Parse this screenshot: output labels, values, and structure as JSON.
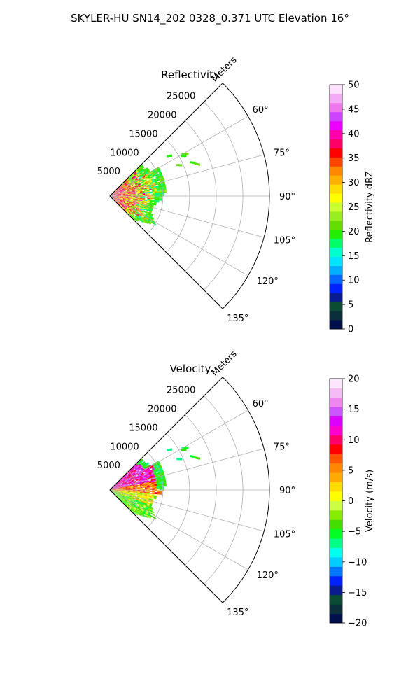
{
  "figure": {
    "title": "SKYLER-HU  SN14_202  0328_0.371 UTC Elevation 16°"
  },
  "colors": {
    "grid": "#b0b0b0",
    "axis": "#000000",
    "reflectivity_palette": [
      "#00104d",
      "#0a2f3a",
      "#0b4d33",
      "#0a1a8f",
      "#0022ff",
      "#0066ff",
      "#00b0ff",
      "#00e5ff",
      "#00ffcc",
      "#00ff66",
      "#22ee00",
      "#66dd00",
      "#99ee22",
      "#ccff33",
      "#ffff00",
      "#ffdd00",
      "#ffb000",
      "#ff8800",
      "#ff4400",
      "#ff0000",
      "#ff0066",
      "#ff00aa",
      "#ee00ff",
      "#cc44ff",
      "#ee77ee",
      "#f5aaf5",
      "#fce0fc"
    ],
    "velocity_palette": [
      "#00104d",
      "#0a2f3a",
      "#0b4d33",
      "#0a1a8f",
      "#0022ff",
      "#0077ff",
      "#00ccff",
      "#00ffee",
      "#00ff88",
      "#00ff22",
      "#44dd00",
      "#88ee00",
      "#ccff44",
      "#ffff00",
      "#ffdd00",
      "#ffaa00",
      "#ff8800",
      "#ff5500",
      "#ff0000",
      "#ff0066",
      "#ff00cc",
      "#dd00ff",
      "#cc55ff",
      "#ee88ee",
      "#f5bbf5",
      "#fde6fd"
    ]
  },
  "chart_data": [
    {
      "type": "heatmap",
      "subtype": "polar-sector (PPI)",
      "title": "Reflectivity",
      "range_label": "Meters",
      "r_ticks": [
        5000,
        10000,
        15000,
        20000,
        25000
      ],
      "r_max": 30000,
      "theta_ticks_deg": [
        60,
        75,
        90,
        105,
        120,
        135
      ],
      "theta_tick_labels": [
        "60°",
        "75°",
        "90°",
        "105°",
        "120°",
        "135°"
      ],
      "theta_range_deg": [
        45,
        135
      ],
      "grid": true,
      "colorbar": {
        "label": "Reflectivity dBZ",
        "min": 0,
        "max": 50,
        "ticks": [
          0,
          5,
          10,
          15,
          20,
          25,
          30,
          35,
          40,
          45,
          50
        ],
        "tick_labels": [
          "0",
          "5",
          "10",
          "15",
          "20",
          "25",
          "30",
          "35",
          "40",
          "45",
          "50"
        ]
      },
      "echo_extent_m": {
        "near": 0,
        "far_typical": 11000,
        "far_max": 18000
      },
      "dominant_values": "15–40 dBZ, peaks near 40–45 dBZ close to the radar"
    },
    {
      "type": "heatmap",
      "subtype": "polar-sector (PPI)",
      "title": "Velocity",
      "range_label": "Meters",
      "r_ticks": [
        5000,
        10000,
        15000,
        20000,
        25000
      ],
      "r_max": 30000,
      "theta_ticks_deg": [
        60,
        75,
        90,
        105,
        120,
        135
      ],
      "theta_tick_labels": [
        "60°",
        "75°",
        "90°",
        "105°",
        "120°",
        "135°"
      ],
      "theta_range_deg": [
        45,
        135
      ],
      "grid": true,
      "colorbar": {
        "label": "Velocity (m/s)",
        "min": -20,
        "max": 20,
        "ticks": [
          -20,
          -15,
          -10,
          -5,
          0,
          5,
          10,
          15,
          20
        ],
        "tick_labels": [
          "−20",
          "−15",
          "−10",
          "−5",
          "0",
          "5",
          "10",
          "15",
          "20"
        ]
      },
      "echo_extent_m": {
        "near": 0,
        "far_typical": 11000,
        "far_max": 18000
      },
      "dominant_values": "+10 to +15 m/s in the northern sector, 0 to −7 m/s in the southern sector"
    }
  ]
}
